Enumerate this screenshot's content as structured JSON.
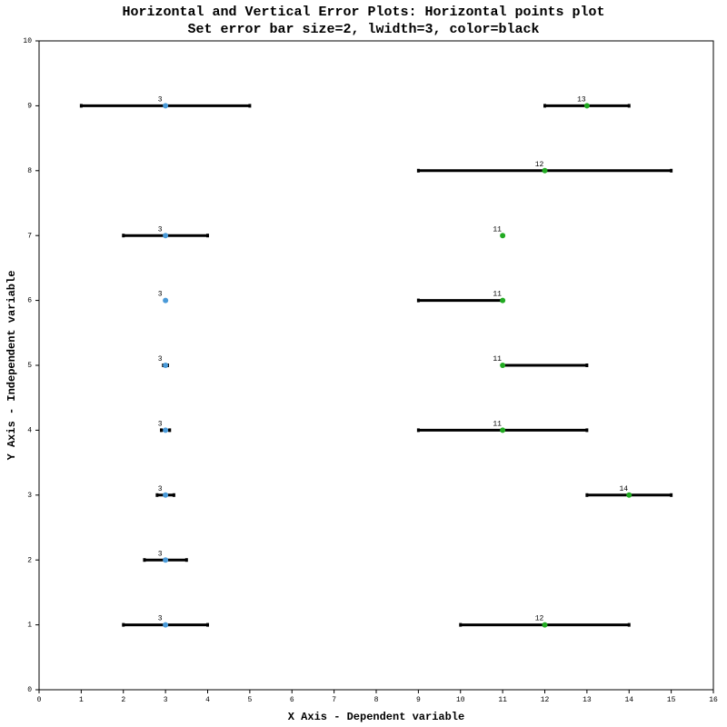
{
  "chart_data": {
    "type": "scatter",
    "title": "Horizontal and Vertical Error Plots: Horizontal points plot",
    "subtitle": "Set error bar size=2, lwidth=3, color=black",
    "xlabel": "X Axis - Dependent variable",
    "ylabel": "Y Axis - Independent variable",
    "xlim": [
      0,
      16
    ],
    "xticks": [
      0,
      1,
      2,
      3,
      4,
      5,
      6,
      7,
      8,
      9,
      10,
      11,
      12,
      13,
      14,
      15,
      16
    ],
    "ylim": [
      0,
      10
    ],
    "yticks": [
      0,
      1,
      2,
      3,
      4,
      5,
      6,
      7,
      8,
      9,
      10
    ],
    "errorbar": {
      "color": "black",
      "lwidth": 3,
      "size": 2
    },
    "series": [
      {
        "color": "#4a9ad8",
        "x": [
          3,
          3,
          3,
          3,
          3,
          3,
          3,
          3
        ],
        "y": [
          1,
          2,
          3,
          4,
          5,
          6,
          7,
          9
        ],
        "xerr_minus": [
          1,
          0.5,
          0.2,
          0.1,
          0.05,
          0,
          1,
          2
        ],
        "xerr_plus": [
          1,
          0.5,
          0.2,
          0.1,
          0.05,
          0,
          1,
          2
        ]
      },
      {
        "color": "#22aa22",
        "x": [
          12,
          14,
          11,
          11,
          11,
          11,
          12,
          13
        ],
        "y": [
          1,
          3,
          4,
          5,
          6,
          7,
          8,
          9
        ],
        "xerr_minus": [
          2,
          1,
          2,
          0,
          2,
          0,
          3,
          1
        ],
        "xerr_plus": [
          2,
          1,
          2,
          2,
          0,
          0,
          3,
          1
        ]
      }
    ]
  }
}
